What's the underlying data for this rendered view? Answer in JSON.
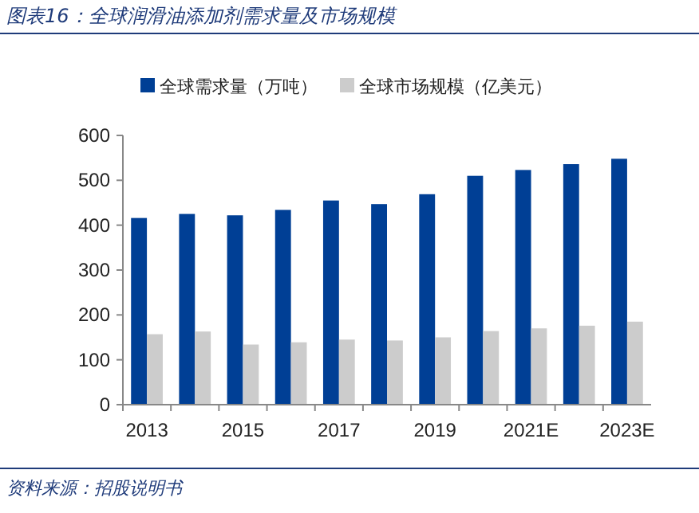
{
  "chart_data": {
    "type": "bar",
    "title": "图表16：全球润滑油添加剂需求量及市场规模",
    "categories": [
      "2013",
      null,
      "2015",
      null,
      "2017",
      null,
      "2019",
      null,
      "2021E",
      null,
      "2023E"
    ],
    "series": [
      {
        "name": "全球需求量（万吨）",
        "color": "#003f95",
        "values": [
          416,
          425,
          422,
          434,
          455,
          447,
          469,
          510,
          523,
          536,
          548
        ]
      },
      {
        "name": "全球市场规模（亿美元）",
        "color": "#cccccc",
        "values": [
          157,
          163,
          134,
          139,
          145,
          143,
          150,
          164,
          170,
          176,
          185
        ]
      }
    ],
    "ylim": [
      0,
      600
    ],
    "yticks": [
      0,
      100,
      200,
      300,
      400,
      500,
      600
    ],
    "legend": "top",
    "grid": false,
    "annotations": [
      "资料来源：招股说明书"
    ]
  }
}
